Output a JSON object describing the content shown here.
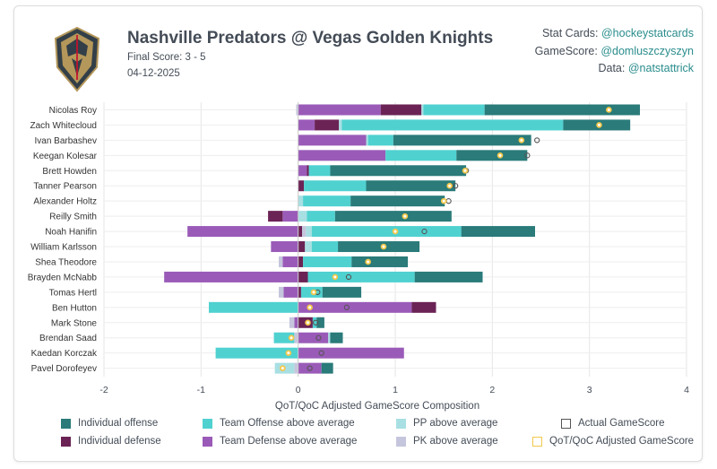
{
  "header": {
    "title": "Nashville Predators @ Vegas Golden Knights",
    "final_score": "Final Score: 3 - 5",
    "date": "04-12-2025"
  },
  "credits": [
    {
      "label": "Stat Cards:",
      "handle": "@hockeystatcards"
    },
    {
      "label": "GameScore:",
      "handle": "@domluszczyszyn"
    },
    {
      "label": "Data:",
      "handle": "@natstattrick"
    }
  ],
  "colors": {
    "individual_offense": "#2a7b7a",
    "individual_defense": "#6b2355",
    "team_offense": "#4fd1d0",
    "team_defense": "#9a5bb8",
    "pp": "#a8dfe3",
    "pk": "#c5c6dd",
    "actual_marker": "#555555",
    "adjusted_marker": "#f3c84c",
    "logo_gold": "#b4975a",
    "logo_black": "#333f48"
  },
  "legend": [
    {
      "key": "individual_offense",
      "label": "Individual offense"
    },
    {
      "key": "team_offense",
      "label": "Team Offense above average"
    },
    {
      "key": "pp",
      "label": "PP above average"
    },
    {
      "key": "actual",
      "label": "Actual GameScore"
    },
    {
      "key": "individual_defense",
      "label": "Individual defense"
    },
    {
      "key": "team_defense",
      "label": "Team Defense above average"
    },
    {
      "key": "pk",
      "label": "PK above average"
    },
    {
      "key": "adjusted",
      "label": "QoT/QoC Adjusted GameScore"
    }
  ],
  "chart_data": {
    "type": "bar",
    "orientation": "horizontal-stacked",
    "xlabel": "QoT/QoC Adjusted GameScore Composition",
    "xlim": [
      -2,
      4
    ],
    "xticks": [
      -2,
      -1,
      0,
      1,
      2,
      3,
      4
    ],
    "grid": true,
    "legend_position": "bottom",
    "series_order": [
      "team_defense",
      "individual_defense",
      "pk",
      "pp",
      "team_offense",
      "individual_offense"
    ],
    "players": [
      {
        "name": "Nicolas Roy",
        "team_defense": 0.85,
        "individual_defense": 0.42,
        "pk": -0.02,
        "pp": 0.02,
        "team_offense": 0.63,
        "individual_offense": 1.6,
        "actual": null,
        "adjusted": 3.2
      },
      {
        "name": "Zach Whitecloud",
        "team_defense": 0.17,
        "individual_defense": 0.25,
        "pk": 0.0,
        "pp": 0.03,
        "team_offense": 2.28,
        "individual_offense": 0.69,
        "actual": 3.1,
        "adjusted": 3.1
      },
      {
        "name": "Ivan Barbashev",
        "team_defense": 0.7,
        "individual_defense": 0.0,
        "pk": 0.0,
        "pp": 0.02,
        "team_offense": 0.26,
        "individual_offense": 1.42,
        "actual": 2.46,
        "adjusted": 2.3
      },
      {
        "name": "Keegan Kolesar",
        "team_defense": 0.9,
        "individual_defense": 0.0,
        "pk": 0.0,
        "pp": 0.0,
        "team_offense": 0.73,
        "individual_offense": 0.73,
        "actual": 2.36,
        "adjusted": 2.08
      },
      {
        "name": "Brett Howden",
        "team_defense": 0.09,
        "individual_defense": 0.02,
        "pk": 0.0,
        "pp": 0.0,
        "team_offense": 0.22,
        "individual_offense": 1.4,
        "actual": 1.73,
        "adjusted": 1.72
      },
      {
        "name": "Tanner Pearson",
        "team_defense": 0.0,
        "individual_defense": 0.06,
        "pk": 0.0,
        "pp": 0.0,
        "team_offense": 0.64,
        "individual_offense": 0.92,
        "actual": 1.62,
        "adjusted": 1.56
      },
      {
        "name": "Alexander Holtz",
        "team_defense": 0.0,
        "individual_defense": 0.0,
        "pk": 0.0,
        "pp": 0.05,
        "team_offense": 0.49,
        "individual_offense": 0.97,
        "actual": 1.55,
        "adjusted": 1.5
      },
      {
        "name": "Reilly Smith",
        "team_defense": -0.16,
        "individual_defense": -0.15,
        "pk": 0.0,
        "pp": 0.09,
        "team_offense": 0.29,
        "individual_offense": 1.2,
        "actual": null,
        "adjusted": 1.1
      },
      {
        "name": "Noah Hanifin",
        "team_defense": -1.14,
        "individual_defense": 0.04,
        "pk": 0.04,
        "pp": 0.06,
        "team_offense": 1.54,
        "individual_offense": 0.76,
        "actual": 1.3,
        "adjusted": 1.0
      },
      {
        "name": "William Karlsson",
        "team_defense": -0.28,
        "individual_defense": 0.07,
        "pk": 0.0,
        "pp": 0.07,
        "team_offense": 0.27,
        "individual_offense": 0.84,
        "actual": null,
        "adjusted": 0.88
      },
      {
        "name": "Shea Theodore",
        "team_defense": -0.16,
        "individual_defense": 0.05,
        "pk": -0.04,
        "pp": 0.0,
        "team_offense": 0.5,
        "individual_offense": 0.58,
        "actual": null,
        "adjusted": 0.72
      },
      {
        "name": "Brayden McNabb",
        "team_defense": -1.38,
        "individual_defense": 0.1,
        "pk": 0.0,
        "pp": 0.0,
        "team_offense": 1.1,
        "individual_offense": 0.7,
        "actual": 0.52,
        "adjusted": 0.38
      },
      {
        "name": "Tomas Hertl",
        "team_defense": -0.15,
        "individual_defense": 0.03,
        "pk": -0.05,
        "pp": 0.0,
        "team_offense": 0.22,
        "individual_offense": 0.4,
        "actual": 0.2,
        "adjusted": 0.16
      },
      {
        "name": "Ben Hutton",
        "team_defense": 1.17,
        "individual_defense": 0.25,
        "pk": 0.0,
        "pp": 0.0,
        "team_offense": -0.92,
        "individual_offense": 0.0,
        "actual": 0.5,
        "adjusted": 0.12
      },
      {
        "name": "Mark Stone",
        "team_defense": -0.04,
        "individual_defense": 0.15,
        "pk": -0.05,
        "pp": 0.0,
        "team_offense": 0.04,
        "individual_offense": 0.08,
        "actual": 0.18,
        "adjusted": 0.1
      },
      {
        "name": "Brendan Saad",
        "team_defense": 0.31,
        "individual_defense": 0.0,
        "pk": -0.04,
        "pp": 0.02,
        "team_offense": -0.21,
        "individual_offense": 0.13,
        "actual": 0.21,
        "adjusted": -0.07
      },
      {
        "name": "Kaedan Korczak",
        "team_defense": 1.09,
        "individual_defense": 0.0,
        "pk": 0.0,
        "pp": 0.0,
        "team_offense": -0.85,
        "individual_offense": 0.0,
        "actual": 0.24,
        "adjusted": -0.1
      },
      {
        "name": "Pavel Dorofeyev",
        "team_defense": 0.24,
        "individual_defense": 0.0,
        "pk": -0.04,
        "pp": -0.2,
        "team_offense": 0.0,
        "individual_offense": 0.12,
        "actual": 0.12,
        "adjusted": -0.16
      }
    ]
  }
}
